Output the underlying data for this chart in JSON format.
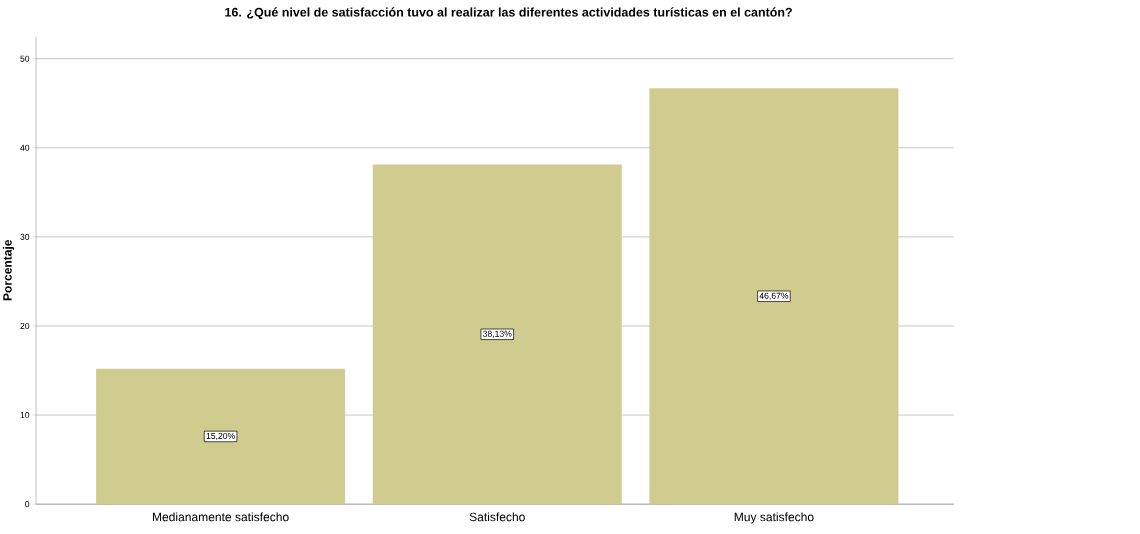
{
  "chart_data": {
    "type": "bar",
    "title": "16. ¿Qué nivel de satisfacción tuvo al realizar las diferentes actividades turísticas en el cantón?",
    "ylabel": "Porcentaje",
    "categories": [
      "Medianamente satisfecho",
      "Satisfecho",
      "Muy satisfecho"
    ],
    "values": [
      15.2,
      38.13,
      46.67
    ],
    "value_labels": [
      "15,20%",
      "38,13%",
      "46,67%"
    ],
    "color": "#d0cb8f",
    "ylim": [
      0,
      52.5
    ],
    "yticks": [
      0,
      10,
      20,
      30,
      40,
      50
    ],
    "grid": "y"
  }
}
